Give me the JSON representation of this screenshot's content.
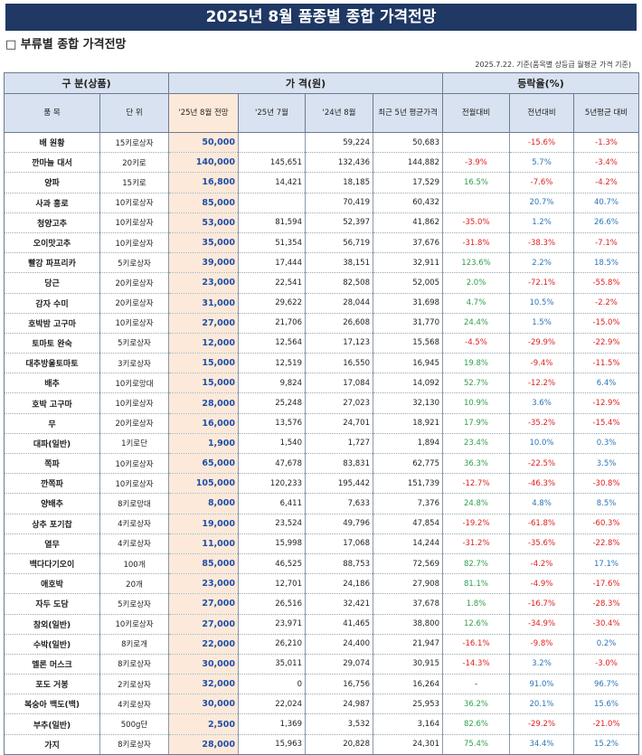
{
  "title": "2025년 8월 품종별 종합 가격전망",
  "subtitle": "□ 부류별 종합 가격전망",
  "note": "2025.7.22. 기준(품목별 상등급 월평균 가격 기준)",
  "headers": {
    "group_category": "구 분(상품)",
    "group_price": "가 격(원)",
    "group_rate": "등락율(%)",
    "item": "품 목",
    "unit": "단 위",
    "forecast": "'25년 8월 전망",
    "jul25": "'25년 7월",
    "aug24": "'24년 8월",
    "avg5": "최근 5년 평균가격",
    "mom": "전월대비",
    "yoy": "전년대비",
    "vs5": "5년평균 대비"
  },
  "rows": [
    {
      "item": "배 원황",
      "unit": "15키로상자",
      "forecast": "50,000",
      "jul": "",
      "aug24": "59,224",
      "avg5": "50,683",
      "mom": "",
      "yoy": "-15.6%",
      "vs5": "-1.3%"
    },
    {
      "item": "깐마늘 대서",
      "unit": "20키로",
      "forecast": "140,000",
      "jul": "145,651",
      "aug24": "132,436",
      "avg5": "144,882",
      "mom": "-3.9%",
      "yoy": "5.7%",
      "vs5": "-3.4%"
    },
    {
      "item": "양파",
      "unit": "15키로",
      "forecast": "16,800",
      "jul": "14,421",
      "aug24": "18,185",
      "avg5": "17,529",
      "mom": "16.5%",
      "yoy": "-7.6%",
      "vs5": "-4.2%"
    },
    {
      "item": "사과 홍로",
      "unit": "10키로상자",
      "forecast": "85,000",
      "jul": "",
      "aug24": "70,419",
      "avg5": "60,432",
      "mom": "",
      "yoy": "20.7%",
      "vs5": "40.7%"
    },
    {
      "item": "청양고추",
      "unit": "10키로상자",
      "forecast": "53,000",
      "jul": "81,594",
      "aug24": "52,397",
      "avg5": "41,862",
      "mom": "-35.0%",
      "yoy": "1.2%",
      "vs5": "26.6%"
    },
    {
      "item": "오이맛고추",
      "unit": "10키로상자",
      "forecast": "35,000",
      "jul": "51,354",
      "aug24": "56,719",
      "avg5": "37,676",
      "mom": "-31.8%",
      "yoy": "-38.3%",
      "vs5": "-7.1%"
    },
    {
      "item": "빨강 파프리카",
      "unit": "5키로상자",
      "forecast": "39,000",
      "jul": "17,444",
      "aug24": "38,151",
      "avg5": "32,911",
      "mom": "123.6%",
      "yoy": "2.2%",
      "vs5": "18.5%"
    },
    {
      "item": "당근",
      "unit": "20키로상자",
      "forecast": "23,000",
      "jul": "22,541",
      "aug24": "82,508",
      "avg5": "52,005",
      "mom": "2.0%",
      "yoy": "-72.1%",
      "vs5": "-55.8%"
    },
    {
      "item": "감자 수미",
      "unit": "20키로상자",
      "forecast": "31,000",
      "jul": "29,622",
      "aug24": "28,044",
      "avg5": "31,698",
      "mom": "4.7%",
      "yoy": "10.5%",
      "vs5": "-2.2%"
    },
    {
      "item": "호박밤 고구마",
      "unit": "10키로상자",
      "forecast": "27,000",
      "jul": "21,706",
      "aug24": "26,608",
      "avg5": "31,770",
      "mom": "24.4%",
      "yoy": "1.5%",
      "vs5": "-15.0%"
    },
    {
      "item": "토마토 완숙",
      "unit": "5키로상자",
      "forecast": "12,000",
      "jul": "12,564",
      "aug24": "17,123",
      "avg5": "15,568",
      "mom": "-4.5%",
      "yoy": "-29.9%",
      "vs5": "-22.9%"
    },
    {
      "item": "대추방울토마토",
      "unit": "3키로상자",
      "forecast": "15,000",
      "jul": "12,519",
      "aug24": "16,550",
      "avg5": "16,945",
      "mom": "19.8%",
      "yoy": "-9.4%",
      "vs5": "-11.5%"
    },
    {
      "item": "배추",
      "unit": "10키로망대",
      "forecast": "15,000",
      "jul": "9,824",
      "aug24": "17,084",
      "avg5": "14,092",
      "mom": "52.7%",
      "yoy": "-12.2%",
      "vs5": "6.4%"
    },
    {
      "item": "호박 고구마",
      "unit": "10키로상자",
      "forecast": "28,000",
      "jul": "25,248",
      "aug24": "27,023",
      "avg5": "32,130",
      "mom": "10.9%",
      "yoy": "3.6%",
      "vs5": "-12.9%"
    },
    {
      "item": "무",
      "unit": "20키로상자",
      "forecast": "16,000",
      "jul": "13,576",
      "aug24": "24,701",
      "avg5": "18,921",
      "mom": "17.9%",
      "yoy": "-35.2%",
      "vs5": "-15.4%"
    },
    {
      "item": "대파(일반)",
      "unit": "1키로단",
      "forecast": "1,900",
      "jul": "1,540",
      "aug24": "1,727",
      "avg5": "1,894",
      "mom": "23.4%",
      "yoy": "10.0%",
      "vs5": "0.3%"
    },
    {
      "item": "쪽파",
      "unit": "10키로상자",
      "forecast": "65,000",
      "jul": "47,678",
      "aug24": "83,831",
      "avg5": "62,775",
      "mom": "36.3%",
      "yoy": "-22.5%",
      "vs5": "3.5%"
    },
    {
      "item": "깐쪽파",
      "unit": "10키로상자",
      "forecast": "105,000",
      "jul": "120,233",
      "aug24": "195,442",
      "avg5": "151,739",
      "mom": "-12.7%",
      "yoy": "-46.3%",
      "vs5": "-30.8%"
    },
    {
      "item": "양배추",
      "unit": "8키로망대",
      "forecast": "8,000",
      "jul": "6,411",
      "aug24": "7,633",
      "avg5": "7,376",
      "mom": "24.8%",
      "yoy": "4.8%",
      "vs5": "8.5%"
    },
    {
      "item": "상추 포기찹",
      "unit": "4키로상자",
      "forecast": "19,000",
      "jul": "23,524",
      "aug24": "49,796",
      "avg5": "47,854",
      "mom": "-19.2%",
      "yoy": "-61.8%",
      "vs5": "-60.3%"
    },
    {
      "item": "열무",
      "unit": "4키로상자",
      "forecast": "11,000",
      "jul": "15,998",
      "aug24": "17,068",
      "avg5": "14,244",
      "mom": "-31.2%",
      "yoy": "-35.6%",
      "vs5": "-22.8%"
    },
    {
      "item": "백다다기오이",
      "unit": "100개",
      "forecast": "85,000",
      "jul": "46,525",
      "aug24": "88,753",
      "avg5": "72,569",
      "mom": "82.7%",
      "yoy": "-4.2%",
      "vs5": "17.1%"
    },
    {
      "item": "애호박",
      "unit": "20개",
      "forecast": "23,000",
      "jul": "12,701",
      "aug24": "24,186",
      "avg5": "27,908",
      "mom": "81.1%",
      "yoy": "-4.9%",
      "vs5": "-17.6%"
    },
    {
      "item": "자두 도담",
      "unit": "5키로상자",
      "forecast": "27,000",
      "jul": "26,516",
      "aug24": "32,421",
      "avg5": "37,678",
      "mom": "1.8%",
      "yoy": "-16.7%",
      "vs5": "-28.3%"
    },
    {
      "item": "참외(일반)",
      "unit": "10키로상자",
      "forecast": "27,000",
      "jul": "23,971",
      "aug24": "41,465",
      "avg5": "38,800",
      "mom": "12.6%",
      "yoy": "-34.9%",
      "vs5": "-30.4%"
    },
    {
      "item": "수박(일반)",
      "unit": "8키로개",
      "forecast": "22,000",
      "jul": "26,210",
      "aug24": "24,400",
      "avg5": "21,947",
      "mom": "-16.1%",
      "yoy": "-9.8%",
      "vs5": "0.2%"
    },
    {
      "item": "멜론 머스크",
      "unit": "8키로상자",
      "forecast": "30,000",
      "jul": "35,011",
      "aug24": "29,074",
      "avg5": "30,915",
      "mom": "-14.3%",
      "yoy": "3.2%",
      "vs5": "-3.0%"
    },
    {
      "item": "포도 거봉",
      "unit": "2키로상자",
      "forecast": "32,000",
      "jul": "0",
      "aug24": "16,756",
      "avg5": "16,264",
      "mom": "-",
      "yoy": "91.0%",
      "vs5": "96.7%"
    },
    {
      "item": "복숭아 백도(백)",
      "unit": "4키로상자",
      "forecast": "30,000",
      "jul": "22,024",
      "aug24": "24,987",
      "avg5": "25,953",
      "mom": "36.2%",
      "yoy": "20.1%",
      "vs5": "15.6%"
    },
    {
      "item": "부추(일반)",
      "unit": "500g단",
      "forecast": "2,500",
      "jul": "1,369",
      "aug24": "3,532",
      "avg5": "3,164",
      "mom": "82.6%",
      "yoy": "-29.2%",
      "vs5": "-21.0%"
    },
    {
      "item": "가지",
      "unit": "8키로상자",
      "forecast": "28,000",
      "jul": "15,963",
      "aug24": "20,828",
      "avg5": "24,301",
      "mom": "75.4%",
      "yoy": "34.4%",
      "vs5": "15.2%"
    }
  ]
}
